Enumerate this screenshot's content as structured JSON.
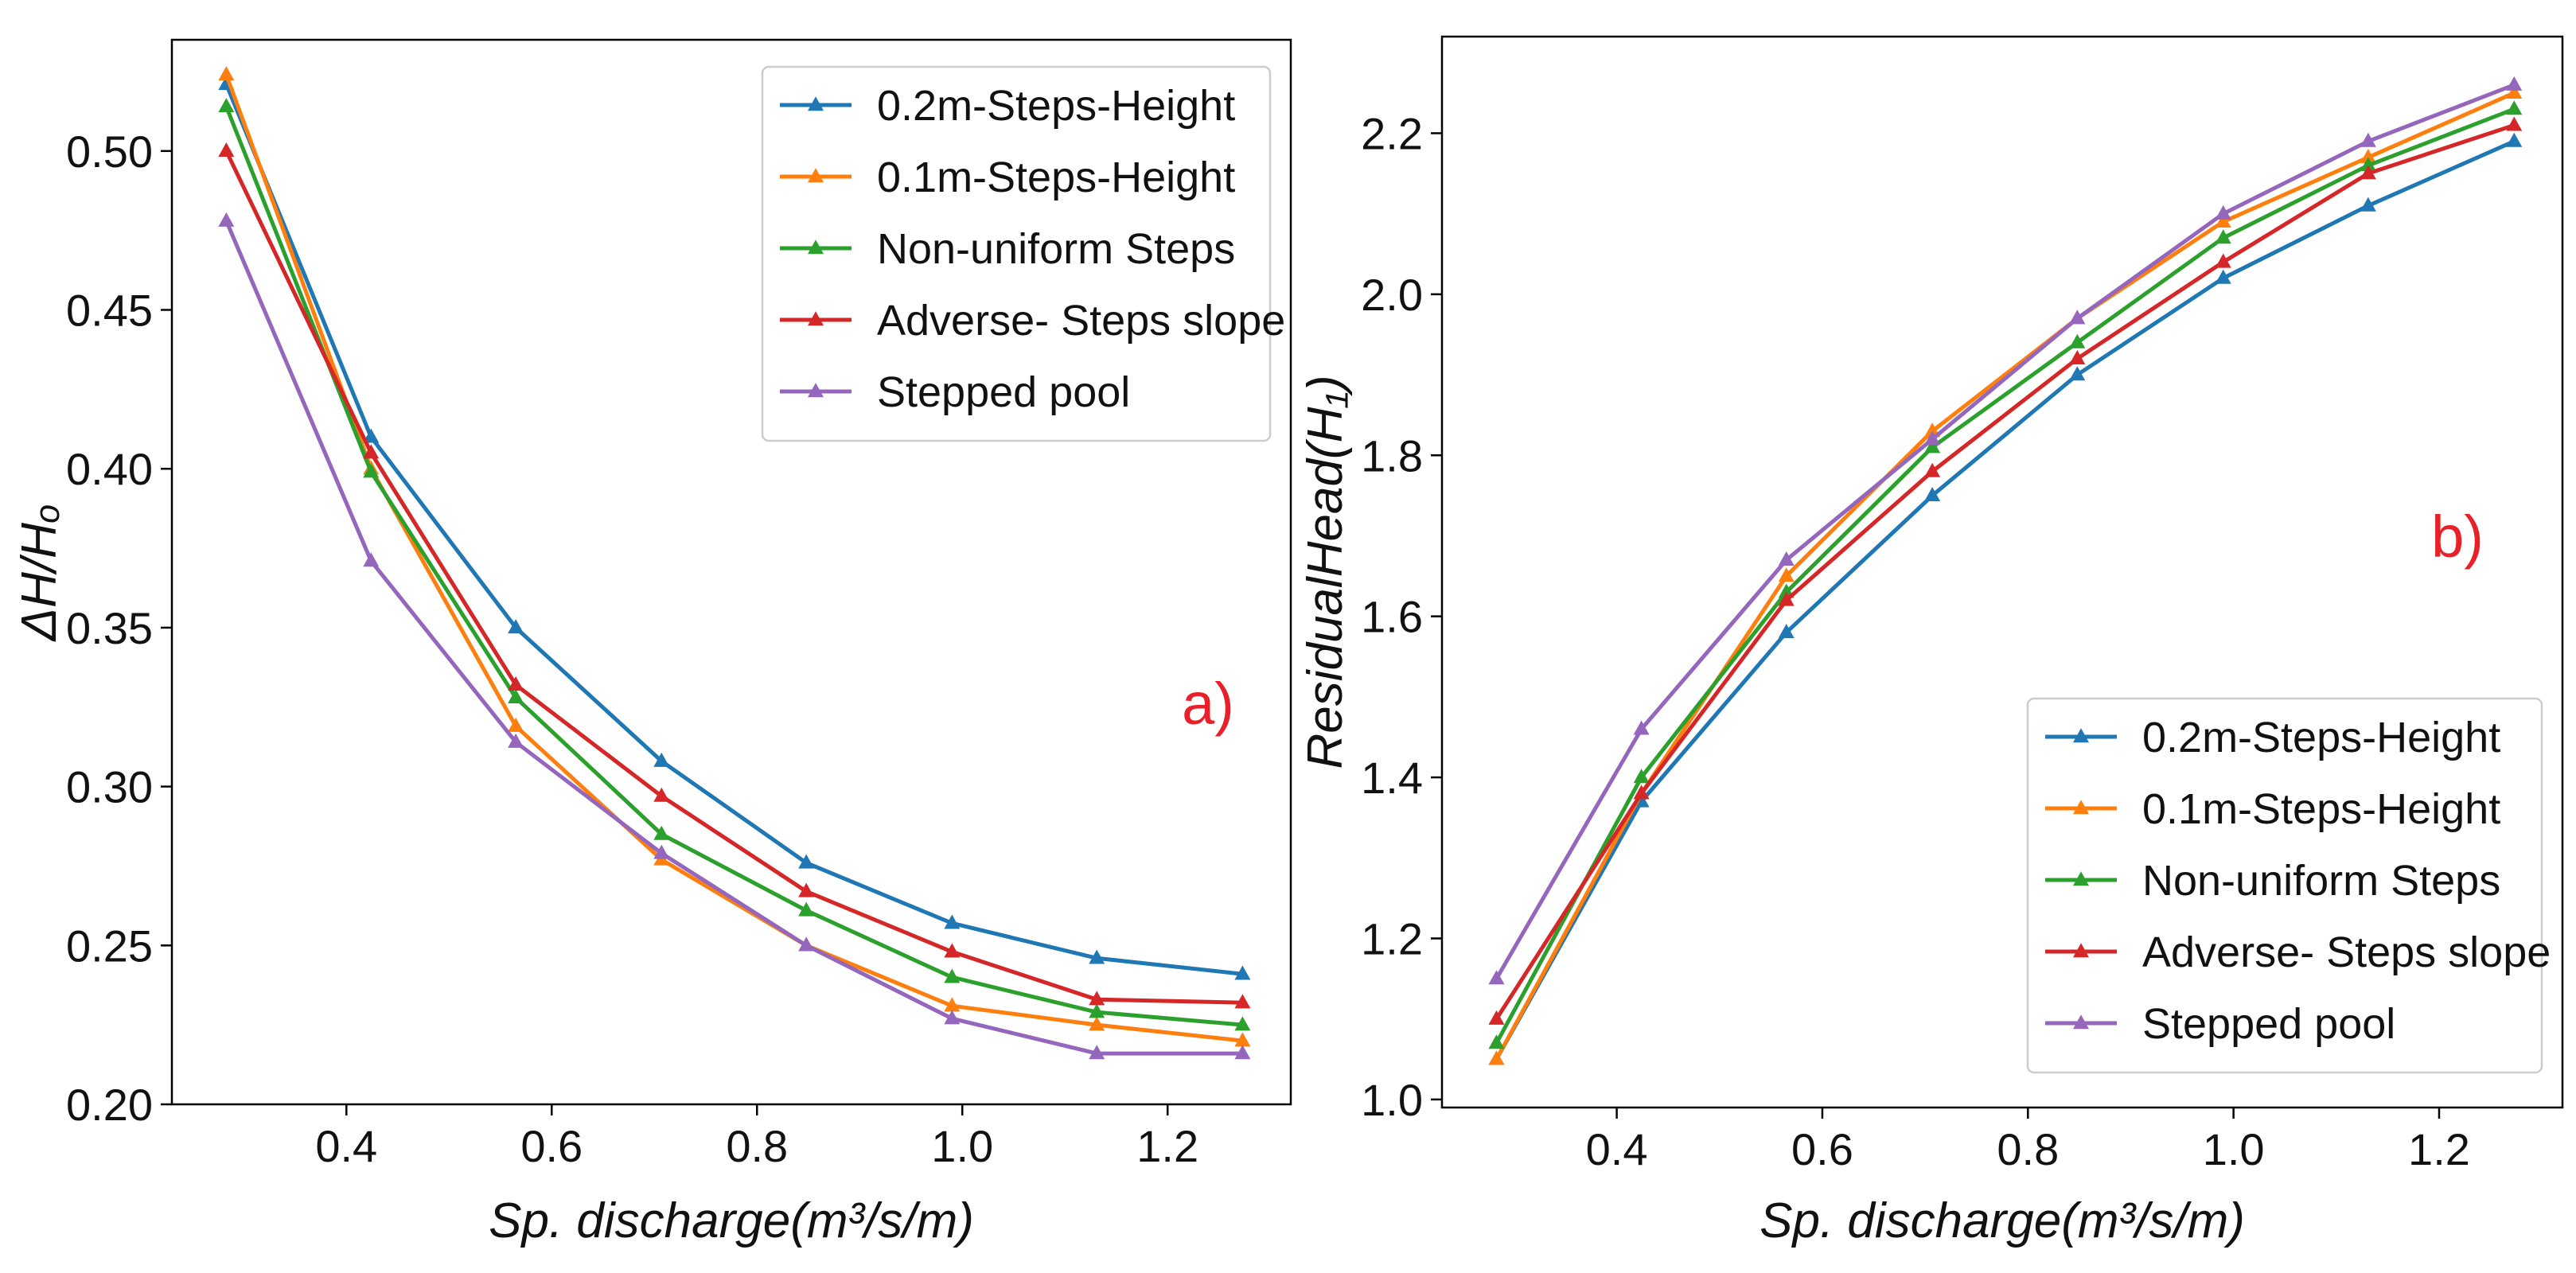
{
  "chart_data": [
    {
      "type": "line",
      "panel_label": "a)",
      "xlabel": "Sp. discharge(m³/s/m)",
      "ylabel": "ΔH/Hₒ",
      "xlim": [
        0.23,
        1.32
      ],
      "ylim": [
        0.2,
        0.535
      ],
      "x_ticks": [
        0.4,
        0.6,
        0.8,
        1.0,
        1.2
      ],
      "x_tick_labels": [
        "0.4",
        "0.6",
        "0.8",
        "1.0",
        "1.2"
      ],
      "y_ticks": [
        0.2,
        0.25,
        0.3,
        0.35,
        0.4,
        0.45,
        0.5
      ],
      "y_tick_labels": [
        "0.20",
        "0.25",
        "0.30",
        "0.35",
        "0.40",
        "0.45",
        "0.50"
      ],
      "legend_position": "top-right",
      "x": [
        0.283,
        0.424,
        0.565,
        0.707,
        0.848,
        0.99,
        1.131,
        1.273
      ],
      "series": [
        {
          "name": "0.2m-Steps-Height",
          "color": "#1f77b4",
          "values": [
            0.521,
            0.41,
            0.35,
            0.308,
            0.276,
            0.257,
            0.246,
            0.241
          ]
        },
        {
          "name": "0.1m-Steps-Height",
          "color": "#ff7f0e",
          "values": [
            0.524,
            0.4,
            0.319,
            0.277,
            0.25,
            0.231,
            0.225,
            0.22
          ]
        },
        {
          "name": "Non-uniform Steps",
          "color": "#2ca02c",
          "values": [
            0.514,
            0.399,
            0.328,
            0.285,
            0.261,
            0.24,
            0.229,
            0.225
          ]
        },
        {
          "name": "Adverse- Steps slope",
          "color": "#d62728",
          "values": [
            0.5,
            0.405,
            0.332,
            0.297,
            0.267,
            0.248,
            0.233,
            0.232
          ]
        },
        {
          "name": "Stepped pool",
          "color": "#9467bd",
          "values": [
            0.478,
            0.371,
            0.314,
            0.279,
            0.25,
            0.227,
            0.216,
            0.216
          ]
        }
      ]
    },
    {
      "type": "line",
      "panel_label": "b)",
      "xlabel": "Sp. discharge(m³/s/m)",
      "ylabel": "ResidualHead(H₁)",
      "xlim": [
        0.23,
        1.32
      ],
      "ylim": [
        0.99,
        2.32
      ],
      "x_ticks": [
        0.4,
        0.6,
        0.8,
        1.0,
        1.2
      ],
      "x_tick_labels": [
        "0.4",
        "0.6",
        "0.8",
        "1.0",
        "1.2"
      ],
      "y_ticks": [
        1.0,
        1.2,
        1.4,
        1.6,
        1.8,
        2.0,
        2.2
      ],
      "y_tick_labels": [
        "1.0",
        "1.2",
        "1.4",
        "1.6",
        "1.8",
        "2.0",
        "2.2"
      ],
      "legend_position": "bottom-right",
      "x": [
        0.283,
        0.424,
        0.565,
        0.707,
        0.848,
        0.99,
        1.131,
        1.273
      ],
      "series": [
        {
          "name": "0.2m-Steps-Height",
          "color": "#1f77b4",
          "values": [
            1.05,
            1.37,
            1.58,
            1.75,
            1.9,
            2.02,
            2.11,
            2.19
          ]
        },
        {
          "name": "0.1m-Steps-Height",
          "color": "#ff7f0e",
          "values": [
            1.05,
            1.38,
            1.65,
            1.83,
            1.97,
            2.09,
            2.17,
            2.25
          ]
        },
        {
          "name": "Non-uniform Steps",
          "color": "#2ca02c",
          "values": [
            1.07,
            1.4,
            1.63,
            1.81,
            1.94,
            2.07,
            2.16,
            2.23
          ]
        },
        {
          "name": "Adverse- Steps slope",
          "color": "#d62728",
          "values": [
            1.1,
            1.38,
            1.62,
            1.78,
            1.92,
            2.04,
            2.15,
            2.21
          ]
        },
        {
          "name": "Stepped pool",
          "color": "#9467bd",
          "values": [
            1.15,
            1.46,
            1.67,
            1.82,
            1.97,
            2.1,
            2.19,
            2.26
          ]
        }
      ]
    }
  ]
}
